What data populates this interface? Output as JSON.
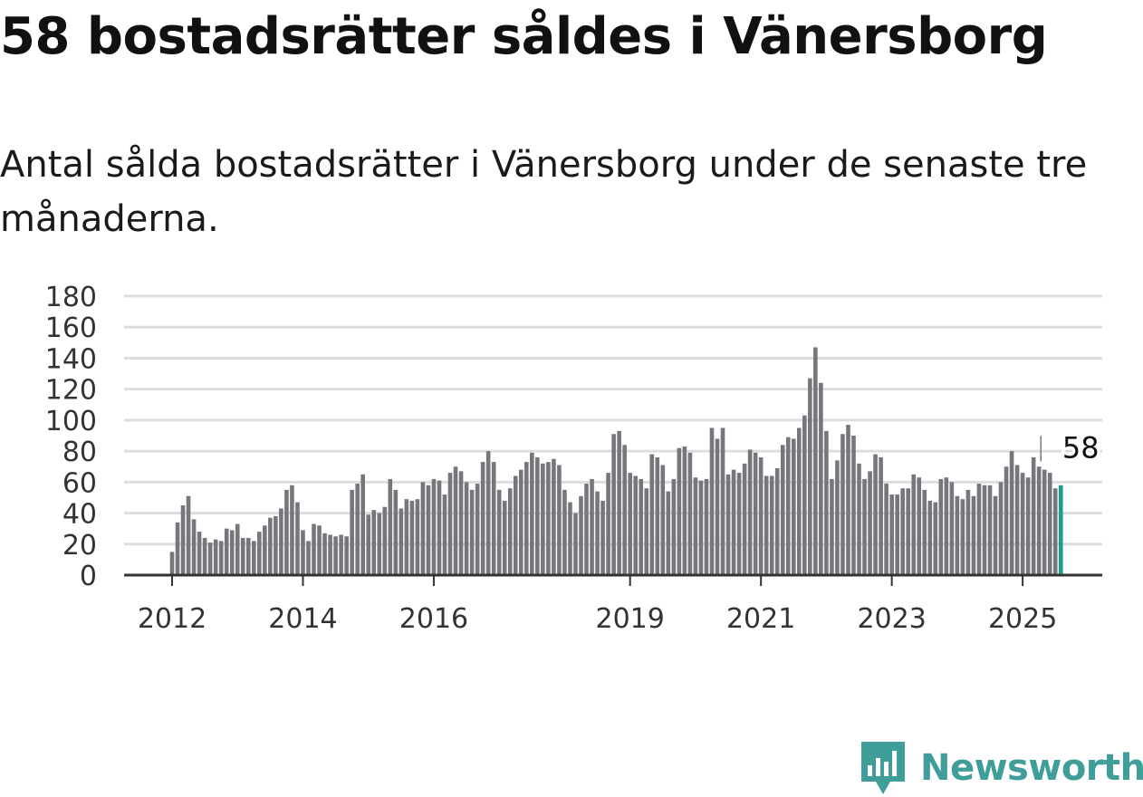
{
  "title": "58 bostadsrätter såldes i Vänersborg",
  "subtitle": "Antal sålda bostadsrätter i Vänersborg under de senaste tre månaderna.",
  "brand": {
    "name": "Newsworthy",
    "icon": "newsworthy-logo-icon",
    "color": "#3f9e9a"
  },
  "chart_data": {
    "type": "bar",
    "title": "",
    "xlabel": "",
    "ylabel": "",
    "ylim": [
      0,
      180
    ],
    "y_ticks": [
      0,
      20,
      40,
      60,
      80,
      100,
      120,
      140,
      160,
      180
    ],
    "x_tick_labels": [
      "2012",
      "2014",
      "2016",
      "2019",
      "2021",
      "2023",
      "2025"
    ],
    "grid": true,
    "bar_color": "#77767c",
    "highlight_color": "#1a9e8f",
    "annotation": {
      "text": "58",
      "target": "last"
    },
    "values": [
      15,
      34,
      45,
      51,
      36,
      28,
      24,
      21,
      23,
      22,
      30,
      29,
      33,
      24,
      24,
      22,
      28,
      32,
      37,
      38,
      43,
      55,
      58,
      47,
      29,
      22,
      33,
      32,
      27,
      26,
      25,
      26,
      25,
      55,
      59,
      65,
      39,
      42,
      40,
      44,
      62,
      55,
      43,
      49,
      48,
      49,
      60,
      58,
      62,
      61,
      52,
      66,
      70,
      67,
      60,
      55,
      59,
      73,
      80,
      73,
      55,
      48,
      56,
      64,
      68,
      73,
      79,
      76,
      72,
      73,
      75,
      71,
      55,
      47,
      40,
      51,
      59,
      62,
      54,
      48,
      66,
      91,
      93,
      84,
      66,
      64,
      62,
      56,
      78,
      76,
      71,
      54,
      62,
      82,
      83,
      79,
      63,
      61,
      62,
      95,
      88,
      95,
      65,
      68,
      66,
      72,
      81,
      79,
      76,
      64,
      64,
      69,
      84,
      89,
      88,
      95,
      103,
      127,
      147,
      124,
      93,
      62,
      74,
      91,
      97,
      90,
      72,
      62,
      67,
      78,
      76,
      59,
      52,
      52,
      56,
      56,
      65,
      63,
      55,
      48,
      47,
      62,
      63,
      60,
      51,
      49,
      55,
      51,
      59,
      58,
      58,
      51,
      60,
      70,
      80,
      71,
      66,
      63,
      76,
      70,
      68,
      66,
      56,
      58
    ]
  }
}
